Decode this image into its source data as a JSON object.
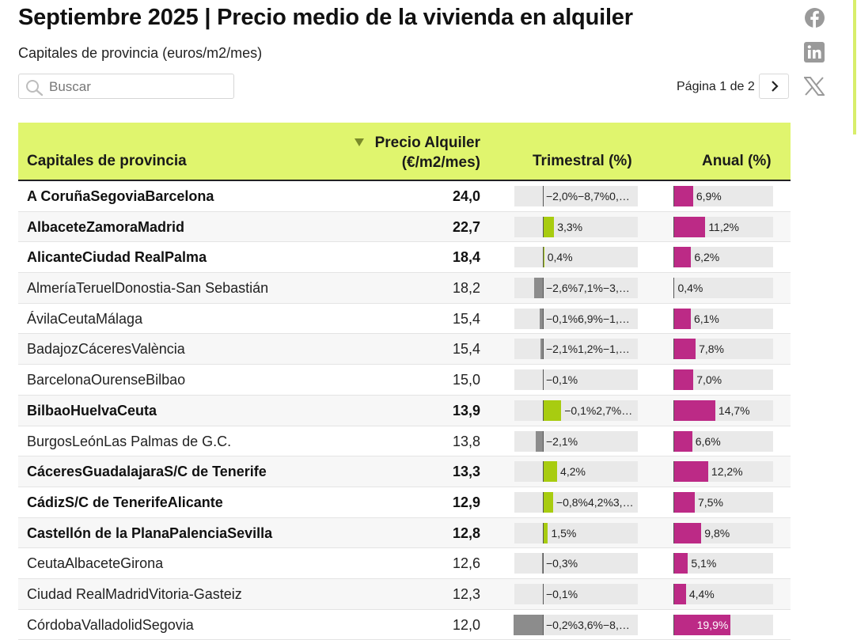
{
  "header": {
    "title": "Septiembre 2025 | Precio medio de la vivienda en alquiler",
    "subtitle": "Capitales de provincia (euros/m2/mes)"
  },
  "search": {
    "placeholder": "Buscar"
  },
  "pager": {
    "label": "Página 1 de 2"
  },
  "share": {
    "icons": [
      "facebook-icon",
      "linkedin-icon",
      "x-icon"
    ]
  },
  "table": {
    "columns": {
      "name": "Capitales de provincia",
      "price_line1": "Precio Alquiler",
      "price_line2": "(€/m2/mes)",
      "trimestral": "Trimestral (%)",
      "anual": "Anual (%)"
    },
    "rows": [
      {
        "name": "A CoruñaSegoviaBarcelona",
        "price": "24,0",
        "tri_label": "−2,0%−8,7%0,…",
        "tri": 0,
        "anual_label": "6,9%",
        "anual": 6.9,
        "bold": true
      },
      {
        "name": "AlbaceteZamoraMadrid",
        "price": "22,7",
        "tri_label": "3,3%",
        "tri": 3.3,
        "anual_label": "11,2%",
        "anual": 11.2,
        "bold": true
      },
      {
        "name": "AlicanteCiudad RealPalma",
        "price": "18,4",
        "tri_label": "0,4%",
        "tri": 0.4,
        "anual_label": "6,2%",
        "anual": 6.2,
        "bold": true
      },
      {
        "name": "AlmeríaTeruelDonostia-San Sebastián",
        "price": "18,2",
        "tri_label": "−2,6%7,1%−3,…",
        "tri": -2.6,
        "anual_label": "0,4%",
        "anual": 0.4,
        "bold": false
      },
      {
        "name": "ÁvilaCeutaMálaga",
        "price": "15,4",
        "tri_label": "−0,1%6,9%−1,…",
        "tri": -1.0,
        "anual_label": "6,1%",
        "anual": 6.1,
        "bold": false
      },
      {
        "name": "BadajozCáceresValència",
        "price": "15,4",
        "tri_label": "−2,1%1,2%−1,…",
        "tri": -0.8,
        "anual_label": "7,8%",
        "anual": 7.8,
        "bold": false
      },
      {
        "name": "BarcelonaOurenseBilbao",
        "price": "15,0",
        "tri_label": "−0,1%",
        "tri": -0.1,
        "anual_label": "7,0%",
        "anual": 7.0,
        "bold": false
      },
      {
        "name": "BilbaoHuelvaCeuta",
        "price": "13,9",
        "tri_label": "−0,1%2,7%…",
        "tri": 5.4,
        "anual_label": "14,7%",
        "anual": 14.7,
        "bold": true
      },
      {
        "name": "BurgosLeónLas Palmas de G.C.",
        "price": "13,8",
        "tri_label": "−2,1%",
        "tri": -2.1,
        "anual_label": "6,6%",
        "anual": 6.6,
        "bold": false
      },
      {
        "name": "CáceresGuadalajaraS/C de Tenerife",
        "price": "13,3",
        "tri_label": "4,2%",
        "tri": 4.2,
        "anual_label": "12,2%",
        "anual": 12.2,
        "bold": true
      },
      {
        "name": "CádizS/C de TenerifeAlicante",
        "price": "12,9",
        "tri_label": "−0,8%4,2%3,…",
        "tri": 3.0,
        "anual_label": "7,5%",
        "anual": 7.5,
        "bold": true
      },
      {
        "name": "Castellón de la PlanaPalenciaSevilla",
        "price": "12,8",
        "tri_label": "1,5%",
        "tri": 1.5,
        "anual_label": "9,8%",
        "anual": 9.8,
        "bold": true
      },
      {
        "name": "CeutaAlbaceteGirona",
        "price": "12,6",
        "tri_label": "−0,3%",
        "tri": -0.3,
        "anual_label": "5,1%",
        "anual": 5.1,
        "bold": false
      },
      {
        "name": "Ciudad RealMadridVitoria-Gasteiz",
        "price": "12,3",
        "tri_label": "−0,1%",
        "tri": -0.1,
        "anual_label": "4,4%",
        "anual": 4.4,
        "bold": false
      },
      {
        "name": "CórdobaValladolidSegovia",
        "price": "12,0",
        "tri_label": "−0,2%3,6%−8,…",
        "tri": -8.7,
        "anual_label": "19,9%",
        "anual": 19.9,
        "bold": false
      }
    ]
  },
  "colors": {
    "header_bg": "#e0f56e",
    "positive": "#a8cc10",
    "negative": "#8c8c8c",
    "anual": "#bc2a86",
    "track": "#e9e9e9"
  }
}
